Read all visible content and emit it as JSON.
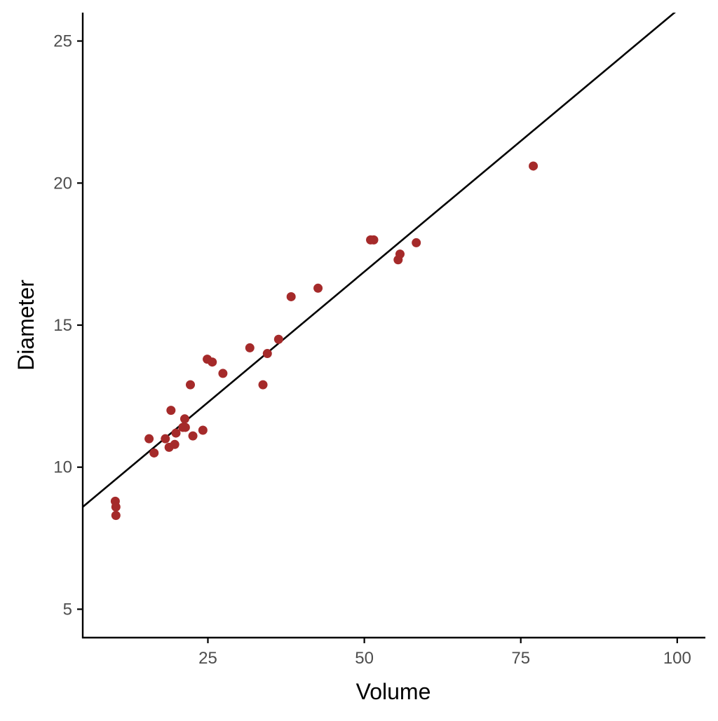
{
  "chart_data": {
    "type": "scatter",
    "title": "",
    "xlabel": "Volume",
    "ylabel": "Diameter",
    "xlim": [
      5.0,
      104.5
    ],
    "ylim": [
      4.0,
      26.0
    ],
    "x_ticks": [
      25,
      50,
      75,
      100
    ],
    "y_ticks": [
      5,
      10,
      15,
      20,
      25
    ],
    "grid": false,
    "legend": "none",
    "colors": {
      "points": "#A52A2A",
      "line": "#000000",
      "axis": "#000000",
      "tick_label": "#4d4d4d"
    },
    "series": [
      {
        "points": [
          {
            "x": 10.3,
            "y": 8.3
          },
          {
            "x": 10.3,
            "y": 8.6
          },
          {
            "x": 10.2,
            "y": 8.8
          },
          {
            "x": 16.4,
            "y": 10.5
          },
          {
            "x": 18.8,
            "y": 10.7
          },
          {
            "x": 19.7,
            "y": 10.8
          },
          {
            "x": 15.6,
            "y": 11.0
          },
          {
            "x": 18.2,
            "y": 11.0
          },
          {
            "x": 22.6,
            "y": 11.1
          },
          {
            "x": 19.9,
            "y": 11.2
          },
          {
            "x": 24.2,
            "y": 11.3
          },
          {
            "x": 21.0,
            "y": 11.4
          },
          {
            "x": 21.4,
            "y": 11.4
          },
          {
            "x": 21.3,
            "y": 11.7
          },
          {
            "x": 19.1,
            "y": 12.0
          },
          {
            "x": 22.2,
            "y": 12.9
          },
          {
            "x": 33.8,
            "y": 12.9
          },
          {
            "x": 27.4,
            "y": 13.3
          },
          {
            "x": 25.7,
            "y": 13.7
          },
          {
            "x": 24.9,
            "y": 13.8
          },
          {
            "x": 34.5,
            "y": 14.0
          },
          {
            "x": 31.7,
            "y": 14.2
          },
          {
            "x": 36.3,
            "y": 14.5
          },
          {
            "x": 38.3,
            "y": 16.0
          },
          {
            "x": 42.6,
            "y": 16.3
          },
          {
            "x": 55.4,
            "y": 17.3
          },
          {
            "x": 55.7,
            "y": 17.5
          },
          {
            "x": 58.3,
            "y": 17.9
          },
          {
            "x": 51.5,
            "y": 18.0
          },
          {
            "x": 51.0,
            "y": 18.0
          },
          {
            "x": 77.0,
            "y": 20.6
          }
        ]
      }
    ],
    "trend_line": {
      "intercept": 7.68,
      "slope": 0.184
    }
  }
}
